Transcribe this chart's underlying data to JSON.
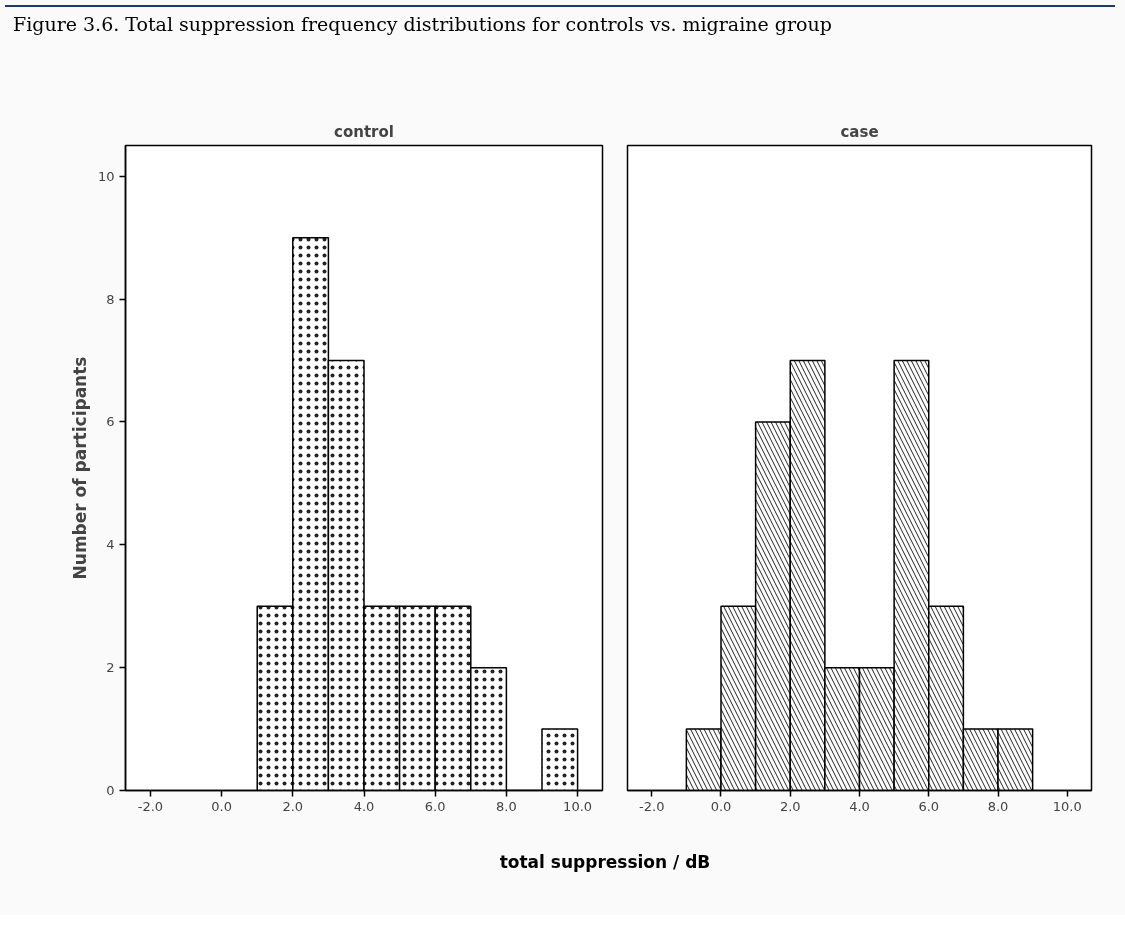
{
  "chart_data": [
    {
      "type": "histogram",
      "title": "control",
      "ylabel": "Number of participants",
      "xlabel": "total suppression / dB",
      "annotations": [
        "Figure 3.6. Total suppression frequency distributions for controls vs. migraine group"
      ],
      "bins": [
        1,
        2,
        3,
        4,
        5,
        6,
        7,
        8,
        9,
        10
      ],
      "values": [
        3,
        9,
        7,
        3,
        3,
        3,
        2,
        0,
        1
      ],
      "color": "#ffffff",
      "xlim": [
        -2.7,
        10.7
      ],
      "xticks": [
        {
          "value": -2,
          "label": "-2.0"
        },
        {
          "value": 0,
          "label": "0.0"
        },
        {
          "value": 2,
          "label": "2.0"
        },
        {
          "value": 4,
          "label": "4.0"
        },
        {
          "value": 6,
          "label": "6.0"
        },
        {
          "value": 8,
          "label": "8.0"
        },
        {
          "value": 10,
          "label": "10.0"
        }
      ],
      "ylim": [
        0,
        10.5
      ],
      "yticks": [
        0,
        2,
        4,
        6,
        8,
        10
      ],
      "grid": false
    },
    {
      "type": "histogram",
      "title": "case",
      "bins": [
        -1,
        0,
        1,
        2,
        3,
        4,
        5,
        6,
        7,
        8,
        9
      ],
      "values": [
        1,
        3,
        6,
        7,
        2,
        2,
        7,
        3,
        1,
        1
      ],
      "color": "#ffffff",
      "xlim": [
        -2.7,
        10.7
      ],
      "xticks": [
        {
          "value": -2,
          "label": "-2.0"
        },
        {
          "value": 0,
          "label": "0.0"
        },
        {
          "value": 2,
          "label": "2.0"
        },
        {
          "value": 4,
          "label": "4.0"
        },
        {
          "value": 6,
          "label": "6.0"
        },
        {
          "value": 8,
          "label": "8.0"
        },
        {
          "value": 10,
          "label": "10.0"
        }
      ],
      "ylim": [
        0,
        10.5
      ],
      "yticks": [
        0,
        2,
        4,
        6,
        8,
        10
      ],
      "tick_labels": "x",
      "grid": false
    }
  ]
}
